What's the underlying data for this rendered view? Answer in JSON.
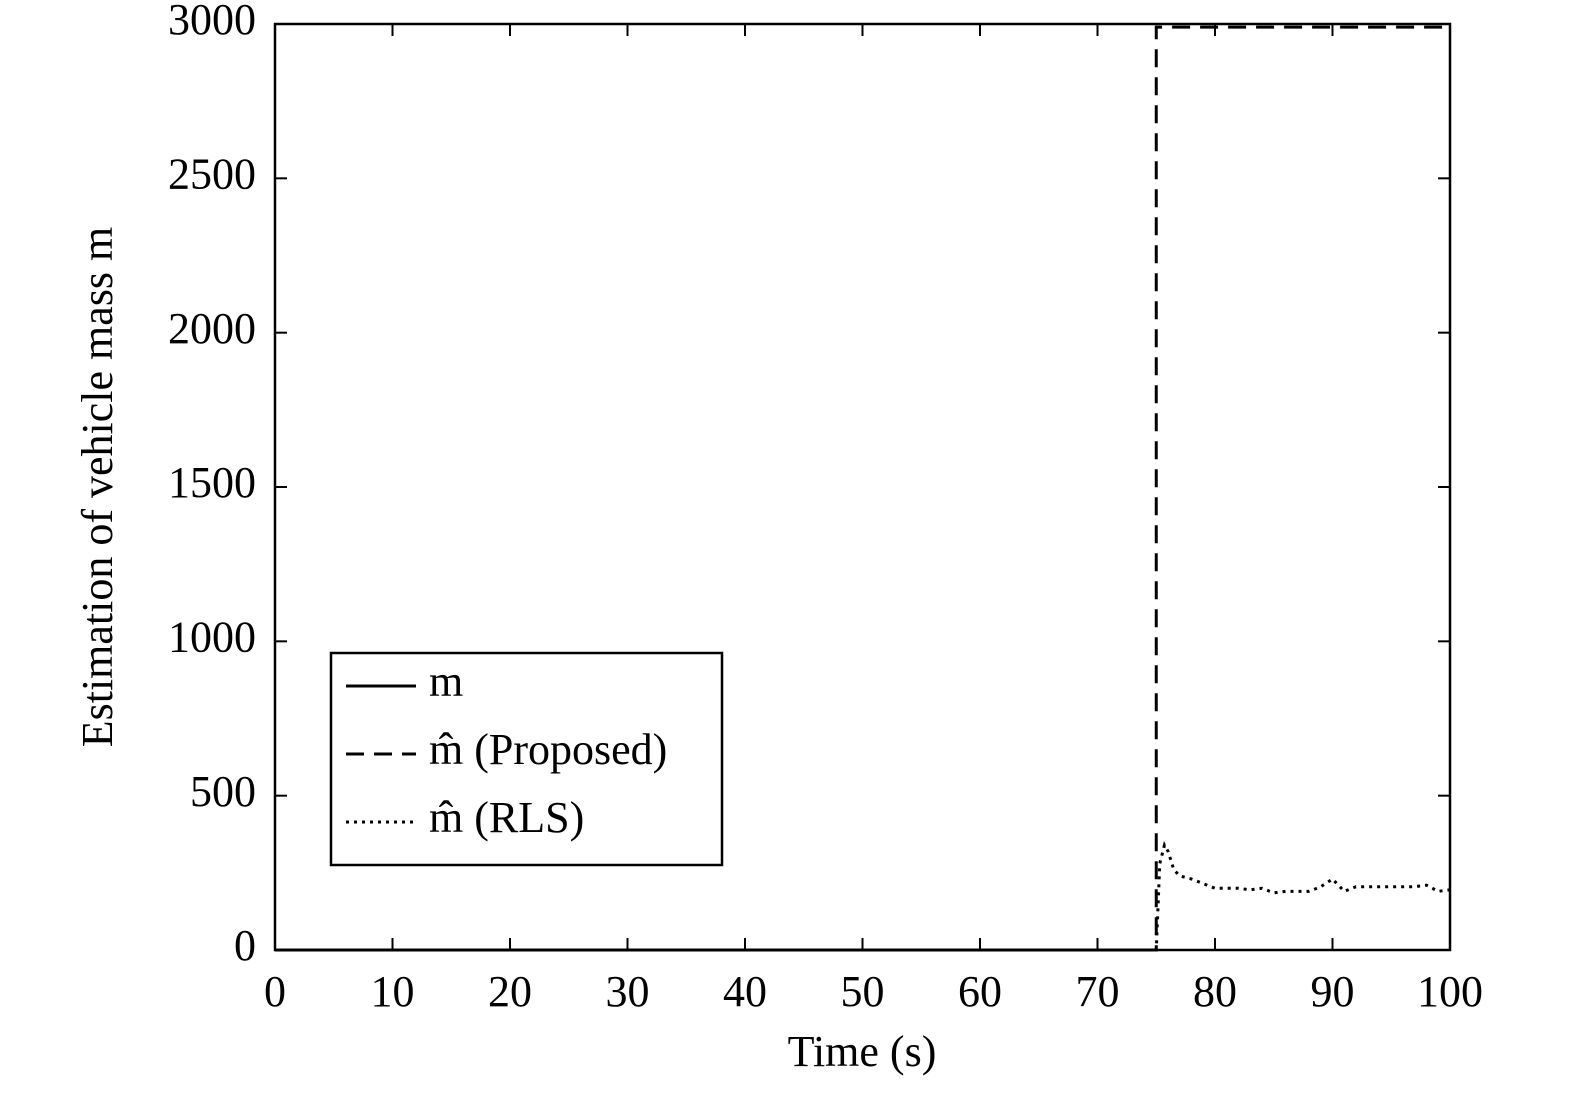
{
  "chart_data": {
    "type": "line",
    "xlabel": "Time (s)",
    "ylabel": "Estimation of vehicle mass m",
    "xlim": [
      0,
      100
    ],
    "xticks": [
      0,
      10,
      20,
      30,
      40,
      50,
      60,
      70,
      80,
      90,
      100
    ],
    "ylim": [
      0,
      3000
    ],
    "yticks": [
      0,
      500,
      1000,
      1500,
      2000,
      2500,
      3000
    ],
    "grid": false,
    "legend": "lower left",
    "series": [
      {
        "name": "m",
        "color": "#000000",
        "dash": "solid",
        "x": [
          0,
          75
        ],
        "values": [
          0,
          0
        ]
      },
      {
        "name": "m̂ (Proposed)",
        "color": "#000000",
        "dash": "dashed",
        "x": [
          0,
          75,
          75,
          100
        ],
        "values": [
          0,
          0,
          2990,
          2990
        ]
      },
      {
        "name": "m̂ (RLS)",
        "color": "#000000",
        "dash": "dotted",
        "x": [
          0,
          75,
          75.3,
          75.7,
          76,
          76.5,
          77,
          78,
          80,
          82,
          83,
          84,
          85,
          86,
          88,
          89,
          90,
          90.5,
          91,
          92,
          94,
          96,
          97,
          98,
          99,
          100
        ],
        "values": [
          0,
          0,
          280,
          340,
          320,
          260,
          240,
          230,
          200,
          200,
          195,
          200,
          185,
          190,
          190,
          205,
          230,
          210,
          190,
          205,
          205,
          205,
          205,
          210,
          190,
          195
        ]
      }
    ]
  }
}
